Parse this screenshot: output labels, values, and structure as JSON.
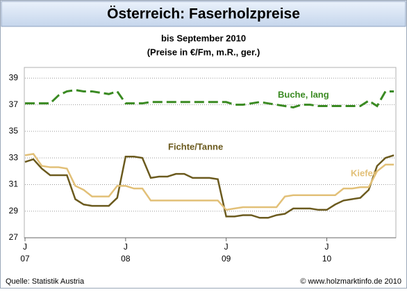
{
  "chart_data": {
    "type": "line",
    "title": "Österreich: Faserholzpreise",
    "subtitle": [
      "bis September 2010",
      "(Preise in €/Fm, m.R., ger.)"
    ],
    "source": "Quelle: Statistik Austria",
    "credit": "© www.holzmarktinfo.de 2010",
    "categories": [
      "J",
      null,
      null,
      null,
      null,
      null,
      null,
      null,
      null,
      null,
      null,
      null,
      "J",
      null,
      null,
      null,
      null,
      null,
      null,
      null,
      null,
      null,
      null,
      null,
      "J",
      null,
      null,
      null,
      null,
      null,
      null,
      null,
      null,
      null,
      null,
      null,
      "J",
      null,
      null,
      null,
      null,
      null,
      null,
      null,
      null
    ],
    "year_labels": [
      "07",
      "08",
      "09",
      "10"
    ],
    "ylim": [
      27,
      39.8
    ],
    "yticks": [
      27,
      29,
      31,
      33,
      35,
      37,
      39
    ],
    "grid": true,
    "series": [
      {
        "name": "Buche, lang",
        "color": "#3a8a22",
        "dashed": true,
        "values": [
          37.1,
          37.1,
          37.1,
          37.1,
          37.7,
          38.0,
          38.1,
          38.0,
          38.0,
          37.9,
          37.8,
          38.0,
          37.1,
          37.1,
          37.1,
          37.2,
          37.2,
          37.2,
          37.2,
          37.2,
          37.2,
          37.2,
          37.2,
          37.2,
          37.2,
          37.0,
          37.0,
          37.1,
          37.2,
          37.1,
          37.0,
          36.9,
          36.8,
          37.0,
          37.0,
          36.9,
          36.9,
          36.9,
          36.9,
          36.9,
          36.9,
          37.3,
          36.9,
          38.0,
          38.0
        ]
      },
      {
        "name": "Fichte/Tanne",
        "color": "#6b5a1e",
        "dashed": false,
        "values": [
          32.7,
          32.9,
          32.2,
          31.7,
          31.7,
          31.7,
          29.9,
          29.5,
          29.4,
          29.4,
          29.4,
          30.0,
          33.1,
          33.1,
          33.0,
          31.5,
          31.6,
          31.6,
          31.8,
          31.8,
          31.5,
          31.5,
          31.5,
          31.4,
          28.6,
          28.6,
          28.7,
          28.7,
          28.5,
          28.5,
          28.7,
          28.8,
          29.2,
          29.2,
          29.2,
          29.1,
          29.1,
          29.5,
          29.8,
          29.9,
          30.0,
          30.6,
          32.4,
          33.0,
          33.2
        ]
      },
      {
        "name": "Kiefer",
        "color": "#e2c078",
        "dashed": false,
        "values": [
          33.2,
          33.3,
          32.4,
          32.3,
          32.3,
          32.2,
          30.9,
          30.6,
          30.1,
          30.1,
          30.1,
          30.9,
          30.9,
          30.7,
          30.7,
          29.8,
          29.8,
          29.8,
          29.8,
          29.8,
          29.8,
          29.8,
          29.8,
          29.8,
          29.1,
          29.2,
          29.3,
          29.3,
          29.3,
          29.3,
          29.3,
          30.1,
          30.2,
          30.2,
          30.2,
          30.2,
          30.2,
          30.2,
          30.7,
          30.7,
          30.8,
          30.8,
          32.0,
          32.5,
          32.5
        ]
      }
    ]
  }
}
